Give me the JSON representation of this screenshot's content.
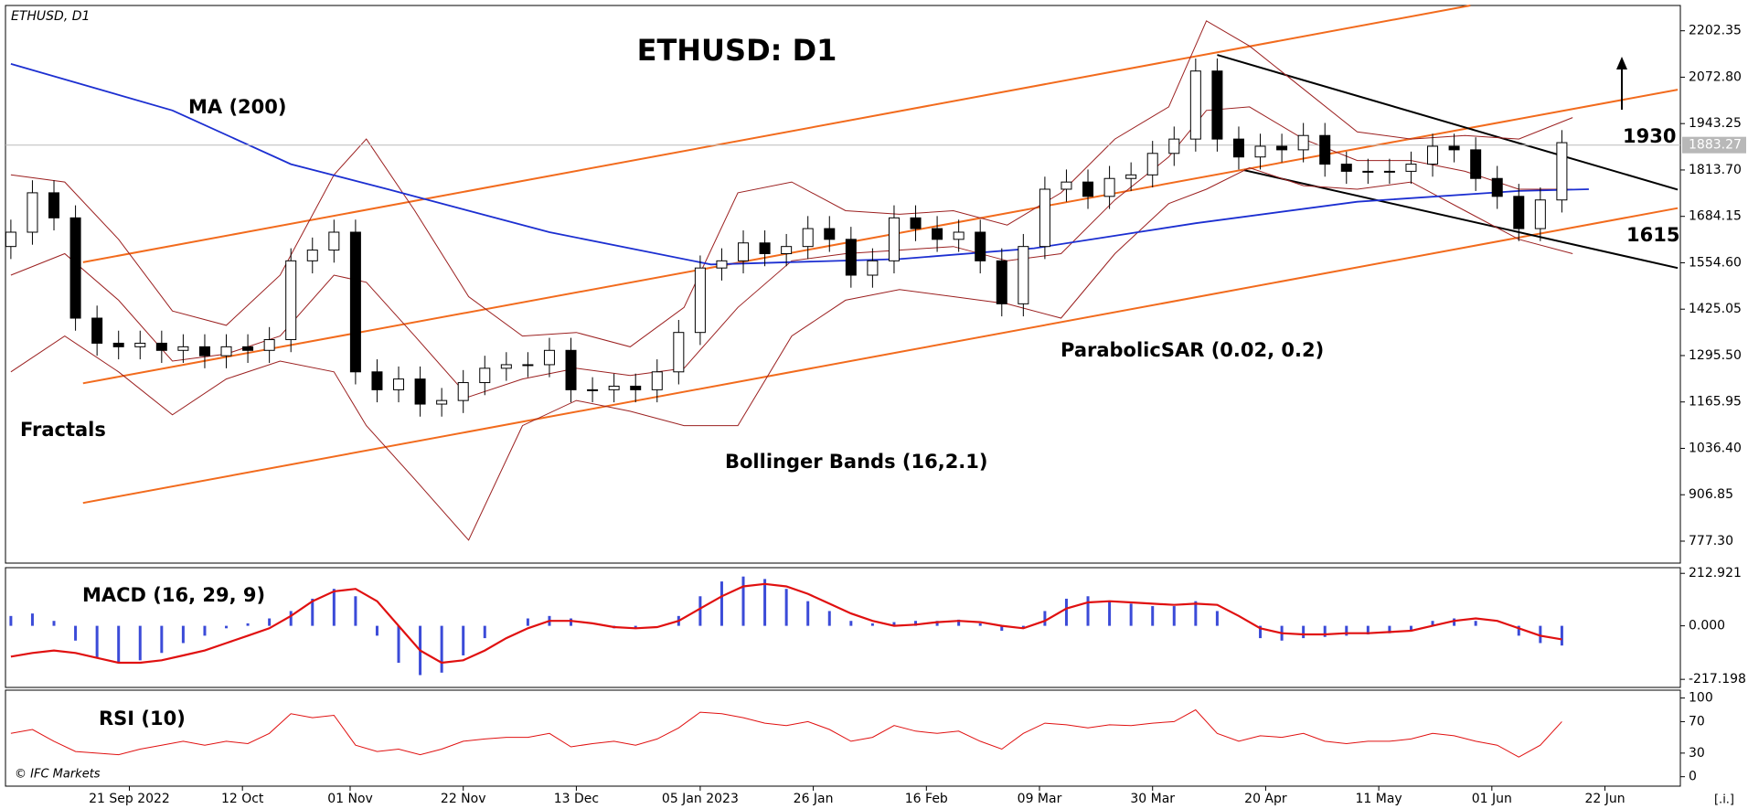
{
  "chart_data": [
    {
      "type": "candlestick",
      "symbol": "ETHUSD, D1",
      "title": "ETHUSD: D1",
      "x": [
        0,
        4,
        8,
        12,
        16,
        20,
        24,
        28,
        32,
        36,
        40,
        44,
        48,
        52,
        56,
        60,
        64,
        68,
        72,
        76,
        80,
        84,
        88,
        92,
        96,
        100,
        104,
        108,
        112,
        116,
        120,
        124,
        128,
        132,
        136,
        140,
        144,
        148,
        152,
        156,
        160,
        164,
        168,
        172,
        176,
        180,
        184,
        188,
        192,
        196,
        200,
        204,
        208,
        212,
        216,
        220,
        224,
        228,
        232,
        236,
        240,
        244,
        248,
        252,
        256,
        260,
        264,
        268,
        272,
        276,
        280,
        284,
        288
      ],
      "open": [
        1600,
        1640,
        1750,
        1680,
        1400,
        1330,
        1320,
        1330,
        1310,
        1320,
        1295,
        1320,
        1310,
        1340,
        1560,
        1590,
        1640,
        1250,
        1200,
        1230,
        1160,
        1170,
        1220,
        1260,
        1270,
        1270,
        1310,
        1200,
        1200,
        1210,
        1200,
        1250,
        1360,
        1540,
        1560,
        1610,
        1580,
        1600,
        1650,
        1620,
        1520,
        1560,
        1680,
        1650,
        1620,
        1640,
        1560,
        1440,
        1600,
        1760,
        1780,
        1740,
        1790,
        1800,
        1860,
        1900,
        2090,
        1900,
        1850,
        1880,
        1870,
        1910,
        1830,
        1810,
        1810,
        1810,
        1830,
        1880,
        1870,
        1790,
        1740,
        1650,
        1730
      ],
      "high": [
        1675,
        1785,
        1785,
        1715,
        1435,
        1365,
        1365,
        1365,
        1355,
        1355,
        1355,
        1355,
        1375,
        1595,
        1625,
        1675,
        1675,
        1285,
        1265,
        1265,
        1205,
        1255,
        1295,
        1305,
        1305,
        1345,
        1345,
        1235,
        1245,
        1245,
        1285,
        1395,
        1575,
        1595,
        1645,
        1645,
        1635,
        1685,
        1685,
        1655,
        1595,
        1715,
        1715,
        1685,
        1675,
        1675,
        1595,
        1635,
        1795,
        1815,
        1815,
        1825,
        1835,
        1895,
        1935,
        2125,
        2125,
        1935,
        1915,
        1915,
        1945,
        1945,
        1865,
        1845,
        1845,
        1865,
        1915,
        1915,
        1905,
        1825,
        1775,
        1765,
        1925
      ],
      "low": [
        1565,
        1605,
        1645,
        1365,
        1295,
        1285,
        1285,
        1275,
        1275,
        1260,
        1260,
        1275,
        1275,
        1305,
        1525,
        1555,
        1215,
        1165,
        1165,
        1125,
        1125,
        1135,
        1185,
        1225,
        1235,
        1235,
        1165,
        1165,
        1165,
        1165,
        1165,
        1215,
        1325,
        1505,
        1525,
        1545,
        1545,
        1565,
        1585,
        1485,
        1485,
        1525,
        1615,
        1585,
        1585,
        1525,
        1405,
        1405,
        1565,
        1725,
        1705,
        1705,
        1755,
        1765,
        1825,
        1865,
        1865,
        1815,
        1815,
        1835,
        1835,
        1795,
        1775,
        1775,
        1775,
        1775,
        1795,
        1835,
        1755,
        1705,
        1615,
        1615,
        1695
      ],
      "close": [
        1640,
        1750,
        1680,
        1400,
        1330,
        1320,
        1330,
        1310,
        1320,
        1295,
        1320,
        1310,
        1340,
        1560,
        1590,
        1640,
        1250,
        1200,
        1230,
        1160,
        1170,
        1220,
        1260,
        1270,
        1270,
        1310,
        1200,
        1200,
        1210,
        1200,
        1250,
        1360,
        1540,
        1560,
        1610,
        1580,
        1600,
        1650,
        1620,
        1520,
        1560,
        1680,
        1650,
        1620,
        1640,
        1560,
        1440,
        1600,
        1760,
        1780,
        1740,
        1790,
        1800,
        1860,
        1900,
        2090,
        1900,
        1850,
        1880,
        1870,
        1910,
        1830,
        1810,
        1810,
        1810,
        1830,
        1880,
        1870,
        1790,
        1740,
        1650,
        1730,
        1890
      ],
      "up_color": "#ffffff",
      "down_color": "#000000",
      "xlim": [
        -1,
        310
      ],
      "ylim": [
        716,
        2273
      ],
      "yticks": [
        2202.35,
        {
          "value": 2072.8,
          "label": "2072.80"
        },
        1943.25,
        {
          "value": 1813.7,
          "label": "1813.70"
        },
        1684.15,
        {
          "value": 1554.6,
          "label": "1554.60"
        },
        1425.05,
        {
          "value": 1295.5,
          "label": "1295.50"
        },
        1165.95,
        {
          "value": 1036.4,
          "label": "1036.40"
        },
        906.85,
        {
          "value": 777.3,
          "label": "777.30"
        }
      ],
      "last_price": 1883.27,
      "series": [
        {
          "name": "MA (200)",
          "color": "#1c2fd1",
          "x": [
            0,
            30,
            52,
            70,
            100,
            130,
            165,
            190,
            220,
            250,
            280,
            293
          ],
          "values": [
            2110,
            1980,
            1830,
            1760,
            1640,
            1550,
            1565,
            1595,
            1665,
            1725,
            1755,
            1760
          ]
        }
      ],
      "bands": {
        "name": "Bollinger Bands (16,2.1)",
        "color": "#9b2020",
        "x": [
          0,
          10,
          20,
          30,
          40,
          50,
          60,
          66,
          75,
          85,
          95,
          105,
          115,
          125,
          135,
          145,
          155,
          165,
          175,
          185,
          195,
          205,
          215,
          222,
          230,
          240,
          250,
          260,
          270,
          280,
          290
        ],
        "upper": [
          1800,
          1780,
          1620,
          1420,
          1380,
          1520,
          1800,
          1900,
          1700,
          1460,
          1350,
          1360,
          1320,
          1430,
          1750,
          1780,
          1700,
          1690,
          1700,
          1660,
          1750,
          1900,
          1990,
          2230,
          2160,
          2040,
          1920,
          1900,
          1910,
          1900,
          1960
        ],
        "middle": [
          1520,
          1580,
          1450,
          1280,
          1300,
          1350,
          1520,
          1500,
          1350,
          1180,
          1230,
          1260,
          1240,
          1260,
          1430,
          1560,
          1580,
          1590,
          1600,
          1560,
          1580,
          1730,
          1850,
          1980,
          1990,
          1900,
          1840,
          1840,
          1810,
          1760,
          1760
        ],
        "lower": [
          1250,
          1350,
          1250,
          1130,
          1230,
          1280,
          1250,
          1100,
          950,
          780,
          1100,
          1170,
          1140,
          1100,
          1100,
          1350,
          1450,
          1480,
          1460,
          1440,
          1400,
          1580,
          1720,
          1760,
          1820,
          1770,
          1760,
          1780,
          1700,
          1620,
          1580
        ]
      },
      "lines": [
        {
          "color": "#f26b1d",
          "x": [
            13.4,
            271
          ],
          "values": [
            1556,
            2273
          ]
        },
        {
          "color": "#f26b1d",
          "x": [
            13.4,
            309.5
          ],
          "values": [
            1218,
            2038
          ]
        },
        {
          "color": "#f26b1d",
          "x": [
            13.4,
            309.5
          ],
          "values": [
            884,
            1707
          ]
        },
        {
          "color": "#000000",
          "x": [
            224,
            309.5
          ],
          "values": [
            2135,
            1759
          ]
        },
        {
          "color": "#000000",
          "x": [
            229,
            309.5
          ],
          "values": [
            1813,
            1540
          ]
        }
      ],
      "annotations": [
        "Fractals",
        "ParabolicSAR (0.02, 0.2)",
        "1930",
        "1615"
      ]
    },
    {
      "type": "macd",
      "title": "MACD (16, 29, 9)",
      "x": [
        0,
        4,
        8,
        12,
        16,
        20,
        24,
        28,
        32,
        36,
        40,
        44,
        48,
        52,
        56,
        60,
        64,
        68,
        72,
        76,
        80,
        84,
        88,
        92,
        96,
        100,
        104,
        108,
        112,
        116,
        120,
        124,
        128,
        132,
        136,
        140,
        144,
        148,
        152,
        156,
        160,
        164,
        168,
        172,
        176,
        180,
        184,
        188,
        192,
        196,
        200,
        204,
        208,
        212,
        216,
        220,
        224,
        228,
        232,
        236,
        240,
        244,
        248,
        252,
        256,
        260,
        264,
        268,
        272,
        276,
        280,
        284,
        288
      ],
      "series": [
        {
          "color": "#3b4bd8",
          "values": [
            40,
            50,
            20,
            -60,
            -130,
            -150,
            -140,
            -110,
            -70,
            -40,
            -10,
            10,
            30,
            60,
            110,
            150,
            120,
            -40,
            -150,
            -200,
            -190,
            -120,
            -50,
            0,
            30,
            40,
            30,
            0,
            -10,
            -10,
            0,
            40,
            120,
            180,
            200,
            190,
            150,
            100,
            60,
            20,
            10,
            15,
            20,
            20,
            25,
            10,
            -20,
            -10,
            60,
            110,
            120,
            100,
            90,
            80,
            80,
            100,
            60,
            0,
            -50,
            -60,
            -50,
            -45,
            -40,
            -35,
            -30,
            -20,
            20,
            30,
            20,
            0,
            -40,
            -70,
            -80
          ]
        },
        {
          "color": "#e01010",
          "values": [
            -125,
            -110,
            -100,
            -110,
            -130,
            -150,
            -150,
            -140,
            -120,
            -100,
            -70,
            -40,
            -10,
            40,
            100,
            140,
            150,
            100,
            0,
            -100,
            -150,
            -140,
            -100,
            -50,
            -10,
            20,
            20,
            10,
            -5,
            -10,
            -5,
            20,
            70,
            120,
            160,
            170,
            160,
            130,
            90,
            50,
            20,
            0,
            5,
            15,
            20,
            15,
            0,
            -10,
            20,
            70,
            95,
            100,
            95,
            90,
            85,
            90,
            85,
            40,
            -10,
            -30,
            -35,
            -35,
            -30,
            -30,
            -25,
            -20,
            0,
            20,
            30,
            20,
            -10,
            -40,
            -55
          ]
        }
      ],
      "xlim": [
        -1,
        310
      ],
      "ylim": [
        -250,
        236
      ],
      "yticks": [
        212.921,
        {
          "value": 0,
          "label": "0.000"
        },
        -217.198
      ]
    },
    {
      "type": "line",
      "title": "RSI (10)",
      "color": "#e01010",
      "x": [
        0,
        4,
        8,
        12,
        16,
        20,
        24,
        28,
        32,
        36,
        40,
        44,
        48,
        52,
        56,
        60,
        64,
        68,
        72,
        76,
        80,
        84,
        88,
        92,
        96,
        100,
        104,
        108,
        112,
        116,
        120,
        124,
        128,
        132,
        136,
        140,
        144,
        148,
        152,
        156,
        160,
        164,
        168,
        172,
        176,
        180,
        184,
        188,
        192,
        196,
        200,
        204,
        208,
        212,
        216,
        220,
        224,
        228,
        232,
        236,
        240,
        244,
        248,
        252,
        256,
        260,
        264,
        268,
        272,
        276,
        280,
        284,
        288
      ],
      "values": [
        55,
        60,
        45,
        32,
        30,
        28,
        35,
        40,
        45,
        40,
        45,
        42,
        55,
        80,
        75,
        78,
        40,
        32,
        35,
        28,
        35,
        45,
        48,
        50,
        50,
        55,
        38,
        42,
        45,
        40,
        48,
        62,
        82,
        80,
        75,
        68,
        65,
        70,
        60,
        45,
        50,
        65,
        58,
        55,
        58,
        45,
        35,
        55,
        68,
        66,
        62,
        66,
        65,
        68,
        70,
        85,
        55,
        45,
        52,
        50,
        55,
        45,
        42,
        45,
        45,
        48,
        55,
        52,
        45,
        40,
        25,
        40,
        70
      ],
      "xlim": [
        -1,
        310
      ],
      "ylim": [
        -12,
        110
      ],
      "yticks": [
        100,
        70,
        30,
        0
      ],
      "xticks": [
        {
          "value": 22,
          "label": "21 Sep 2022"
        },
        {
          "value": 43,
          "label": "12 Oct"
        },
        {
          "value": 63,
          "label": "01 Nov"
        },
        {
          "value": 84,
          "label": "22 Nov"
        },
        {
          "value": 105,
          "label": "13 Dec"
        },
        {
          "value": 128,
          "label": "05 Jan 2023"
        },
        {
          "value": 149,
          "label": "26 Jan"
        },
        {
          "value": 170,
          "label": "16 Feb"
        },
        {
          "value": 191,
          "label": "09 Mar"
        },
        {
          "value": 212,
          "label": "30 Mar"
        },
        {
          "value": 233,
          "label": "20 Apr"
        },
        {
          "value": 254,
          "label": "11 May"
        },
        {
          "value": 275,
          "label": "01 Jun"
        },
        {
          "value": 296,
          "label": "22 Jun"
        }
      ]
    }
  ],
  "footer": {
    "copyright": "© IFC Markets",
    "info": "[.i.]"
  }
}
